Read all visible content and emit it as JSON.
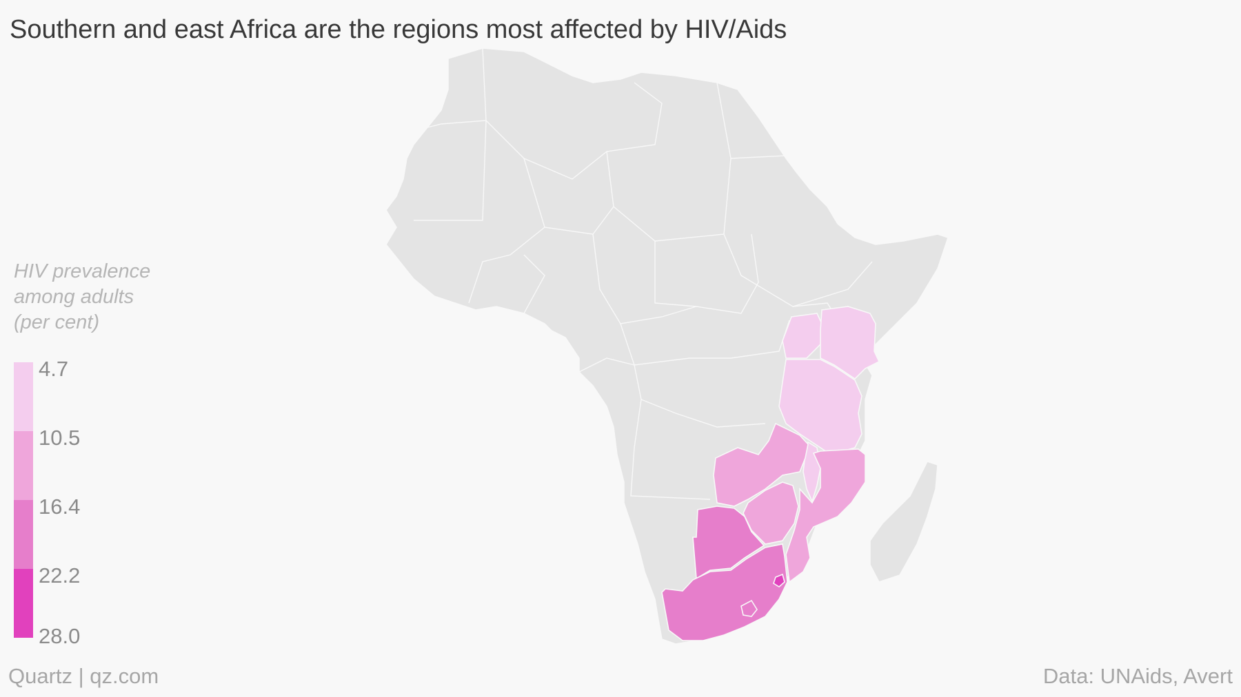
{
  "title": "Southern and east Africa are the regions most affected by HIV/Aids",
  "legend": {
    "title_lines": [
      "HIV prevalence",
      "among adults",
      "(per cent)"
    ],
    "breaks": [
      "4.7",
      "10.5",
      "16.4",
      "22.2",
      "28.0"
    ],
    "colors": [
      "#f4cdee",
      "#efa6db",
      "#e67ecb",
      "#e141bd"
    ]
  },
  "map": {
    "base_color": "#e4e4e4",
    "regions": [
      {
        "name": "Uganda",
        "bin": 0
      },
      {
        "name": "Kenya",
        "bin": 0
      },
      {
        "name": "Tanzania",
        "bin": 0
      },
      {
        "name": "Malawi",
        "bin": 0
      },
      {
        "name": "Zambia",
        "bin": 1
      },
      {
        "name": "Zimbabwe",
        "bin": 1
      },
      {
        "name": "Mozambique",
        "bin": 1
      },
      {
        "name": "Botswana",
        "bin": 2
      },
      {
        "name": "South Africa",
        "bin": 2
      },
      {
        "name": "Lesotho",
        "bin": 2
      },
      {
        "name": "Swaziland",
        "bin": 3
      }
    ]
  },
  "footer": {
    "left": "Quartz | qz.com",
    "right": "Data: UNAids, Avert"
  }
}
